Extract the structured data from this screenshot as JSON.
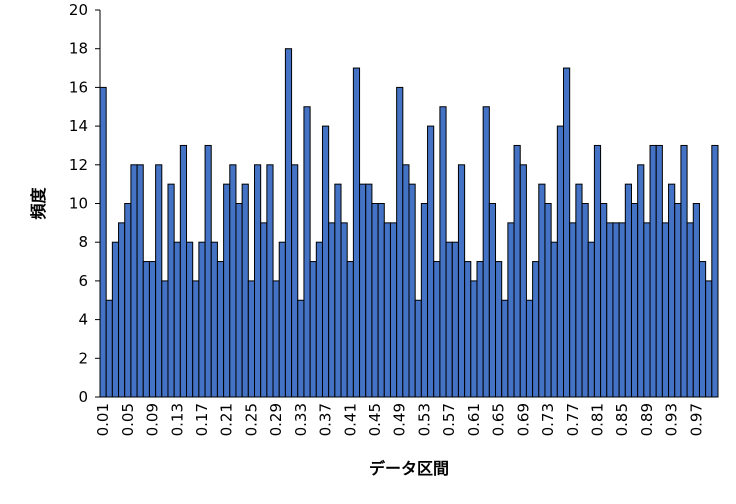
{
  "chart_data": {
    "type": "bar",
    "xlabel": "データ区間",
    "ylabel": "頻度",
    "ylim": [
      0,
      20
    ],
    "yticks": [
      0,
      2,
      4,
      6,
      8,
      10,
      12,
      14,
      16,
      18,
      20
    ],
    "bar_color": "#4472C4",
    "bar_edge_color": "#000000",
    "grid": false,
    "legend": "none",
    "categories": [
      "0.01",
      "0.02",
      "0.03",
      "0.04",
      "0.05",
      "0.06",
      "0.07",
      "0.08",
      "0.09",
      "0.1",
      "0.11",
      "0.12",
      "0.13",
      "0.14",
      "0.15",
      "0.16",
      "0.17",
      "0.18",
      "0.19",
      "0.2",
      "0.21",
      "0.22",
      "0.23",
      "0.24",
      "0.25",
      "0.26",
      "0.27",
      "0.28",
      "0.29",
      "0.3",
      "0.31",
      "0.32",
      "0.33",
      "0.34",
      "0.35",
      "0.36",
      "0.37",
      "0.38",
      "0.39",
      "0.4",
      "0.41",
      "0.42",
      "0.43",
      "0.44",
      "0.45",
      "0.46",
      "0.47",
      "0.48",
      "0.49",
      "0.5",
      "0.51",
      "0.52",
      "0.53",
      "0.54",
      "0.55",
      "0.56",
      "0.57",
      "0.58",
      "0.59",
      "0.6",
      "0.61",
      "0.62",
      "0.63",
      "0.64",
      "0.65",
      "0.66",
      "0.67",
      "0.68",
      "0.69",
      "0.7",
      "0.71",
      "0.72",
      "0.73",
      "0.74",
      "0.75",
      "0.76",
      "0.77",
      "0.78",
      "0.79",
      "0.8",
      "0.81",
      "0.82",
      "0.83",
      "0.84",
      "0.85",
      "0.86",
      "0.87",
      "0.88",
      "0.89",
      "0.9",
      "0.91",
      "0.92",
      "0.93",
      "0.94",
      "0.95",
      "0.96",
      "0.97",
      "0.98",
      "0.99",
      "1"
    ],
    "values": [
      16,
      5,
      8,
      9,
      10,
      12,
      12,
      7,
      7,
      12,
      6,
      11,
      8,
      13,
      8,
      6,
      8,
      13,
      8,
      7,
      11,
      12,
      10,
      11,
      6,
      12,
      9,
      12,
      6,
      8,
      18,
      12,
      5,
      15,
      7,
      8,
      14,
      9,
      11,
      9,
      7,
      17,
      11,
      11,
      10,
      10,
      9,
      9,
      16,
      12,
      11,
      5,
      10,
      14,
      7,
      15,
      8,
      8,
      12,
      7,
      6,
      7,
      15,
      10,
      7,
      5,
      9,
      13,
      12,
      5,
      7,
      11,
      10,
      8,
      14,
      17,
      9,
      11,
      10,
      8,
      13,
      10,
      9,
      9,
      9,
      11,
      10,
      12,
      9,
      13,
      13,
      9,
      11,
      10,
      13,
      9,
      10,
      7,
      6,
      13
    ],
    "xtick_labels": [
      "0.01",
      "0.05",
      "0.09",
      "0.13",
      "0.17",
      "0.21",
      "0.25",
      "0.29",
      "0.33",
      "0.37",
      "0.41",
      "0.45",
      "0.49",
      "0.53",
      "0.57",
      "0.61",
      "0.65",
      "0.69",
      "0.73",
      "0.77",
      "0.81",
      "0.85",
      "0.89",
      "0.93",
      "0.97"
    ]
  }
}
